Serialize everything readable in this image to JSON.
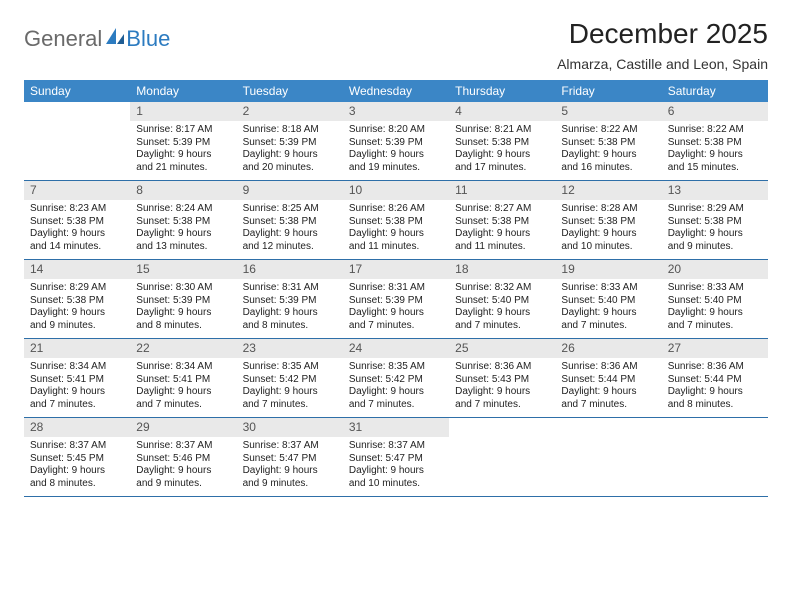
{
  "logo": {
    "textGray": "General",
    "textBlue": "Blue"
  },
  "title": "December 2025",
  "location": "Almarza, Castille and Leon, Spain",
  "colors": {
    "headerBar": "#3b86c6",
    "rowDivider": "#2e6fa8",
    "dayNumBg": "#e9e9e9",
    "logoGray": "#6a6a6a",
    "logoBlue": "#2c7bc0"
  },
  "dow": [
    "Sunday",
    "Monday",
    "Tuesday",
    "Wednesday",
    "Thursday",
    "Friday",
    "Saturday"
  ],
  "weeks": [
    [
      {
        "n": "",
        "sunrise": "",
        "sunset": "",
        "daylight": ""
      },
      {
        "n": "1",
        "sunrise": "Sunrise: 8:17 AM",
        "sunset": "Sunset: 5:39 PM",
        "daylight": "Daylight: 9 hours and 21 minutes."
      },
      {
        "n": "2",
        "sunrise": "Sunrise: 8:18 AM",
        "sunset": "Sunset: 5:39 PM",
        "daylight": "Daylight: 9 hours and 20 minutes."
      },
      {
        "n": "3",
        "sunrise": "Sunrise: 8:20 AM",
        "sunset": "Sunset: 5:39 PM",
        "daylight": "Daylight: 9 hours and 19 minutes."
      },
      {
        "n": "4",
        "sunrise": "Sunrise: 8:21 AM",
        "sunset": "Sunset: 5:38 PM",
        "daylight": "Daylight: 9 hours and 17 minutes."
      },
      {
        "n": "5",
        "sunrise": "Sunrise: 8:22 AM",
        "sunset": "Sunset: 5:38 PM",
        "daylight": "Daylight: 9 hours and 16 minutes."
      },
      {
        "n": "6",
        "sunrise": "Sunrise: 8:22 AM",
        "sunset": "Sunset: 5:38 PM",
        "daylight": "Daylight: 9 hours and 15 minutes."
      }
    ],
    [
      {
        "n": "7",
        "sunrise": "Sunrise: 8:23 AM",
        "sunset": "Sunset: 5:38 PM",
        "daylight": "Daylight: 9 hours and 14 minutes."
      },
      {
        "n": "8",
        "sunrise": "Sunrise: 8:24 AM",
        "sunset": "Sunset: 5:38 PM",
        "daylight": "Daylight: 9 hours and 13 minutes."
      },
      {
        "n": "9",
        "sunrise": "Sunrise: 8:25 AM",
        "sunset": "Sunset: 5:38 PM",
        "daylight": "Daylight: 9 hours and 12 minutes."
      },
      {
        "n": "10",
        "sunrise": "Sunrise: 8:26 AM",
        "sunset": "Sunset: 5:38 PM",
        "daylight": "Daylight: 9 hours and 11 minutes."
      },
      {
        "n": "11",
        "sunrise": "Sunrise: 8:27 AM",
        "sunset": "Sunset: 5:38 PM",
        "daylight": "Daylight: 9 hours and 11 minutes."
      },
      {
        "n": "12",
        "sunrise": "Sunrise: 8:28 AM",
        "sunset": "Sunset: 5:38 PM",
        "daylight": "Daylight: 9 hours and 10 minutes."
      },
      {
        "n": "13",
        "sunrise": "Sunrise: 8:29 AM",
        "sunset": "Sunset: 5:38 PM",
        "daylight": "Daylight: 9 hours and 9 minutes."
      }
    ],
    [
      {
        "n": "14",
        "sunrise": "Sunrise: 8:29 AM",
        "sunset": "Sunset: 5:38 PM",
        "daylight": "Daylight: 9 hours and 9 minutes."
      },
      {
        "n": "15",
        "sunrise": "Sunrise: 8:30 AM",
        "sunset": "Sunset: 5:39 PM",
        "daylight": "Daylight: 9 hours and 8 minutes."
      },
      {
        "n": "16",
        "sunrise": "Sunrise: 8:31 AM",
        "sunset": "Sunset: 5:39 PM",
        "daylight": "Daylight: 9 hours and 8 minutes."
      },
      {
        "n": "17",
        "sunrise": "Sunrise: 8:31 AM",
        "sunset": "Sunset: 5:39 PM",
        "daylight": "Daylight: 9 hours and 7 minutes."
      },
      {
        "n": "18",
        "sunrise": "Sunrise: 8:32 AM",
        "sunset": "Sunset: 5:40 PM",
        "daylight": "Daylight: 9 hours and 7 minutes."
      },
      {
        "n": "19",
        "sunrise": "Sunrise: 8:33 AM",
        "sunset": "Sunset: 5:40 PM",
        "daylight": "Daylight: 9 hours and 7 minutes."
      },
      {
        "n": "20",
        "sunrise": "Sunrise: 8:33 AM",
        "sunset": "Sunset: 5:40 PM",
        "daylight": "Daylight: 9 hours and 7 minutes."
      }
    ],
    [
      {
        "n": "21",
        "sunrise": "Sunrise: 8:34 AM",
        "sunset": "Sunset: 5:41 PM",
        "daylight": "Daylight: 9 hours and 7 minutes."
      },
      {
        "n": "22",
        "sunrise": "Sunrise: 8:34 AM",
        "sunset": "Sunset: 5:41 PM",
        "daylight": "Daylight: 9 hours and 7 minutes."
      },
      {
        "n": "23",
        "sunrise": "Sunrise: 8:35 AM",
        "sunset": "Sunset: 5:42 PM",
        "daylight": "Daylight: 9 hours and 7 minutes."
      },
      {
        "n": "24",
        "sunrise": "Sunrise: 8:35 AM",
        "sunset": "Sunset: 5:42 PM",
        "daylight": "Daylight: 9 hours and 7 minutes."
      },
      {
        "n": "25",
        "sunrise": "Sunrise: 8:36 AM",
        "sunset": "Sunset: 5:43 PM",
        "daylight": "Daylight: 9 hours and 7 minutes."
      },
      {
        "n": "26",
        "sunrise": "Sunrise: 8:36 AM",
        "sunset": "Sunset: 5:44 PM",
        "daylight": "Daylight: 9 hours and 7 minutes."
      },
      {
        "n": "27",
        "sunrise": "Sunrise: 8:36 AM",
        "sunset": "Sunset: 5:44 PM",
        "daylight": "Daylight: 9 hours and 8 minutes."
      }
    ],
    [
      {
        "n": "28",
        "sunrise": "Sunrise: 8:37 AM",
        "sunset": "Sunset: 5:45 PM",
        "daylight": "Daylight: 9 hours and 8 minutes."
      },
      {
        "n": "29",
        "sunrise": "Sunrise: 8:37 AM",
        "sunset": "Sunset: 5:46 PM",
        "daylight": "Daylight: 9 hours and 9 minutes."
      },
      {
        "n": "30",
        "sunrise": "Sunrise: 8:37 AM",
        "sunset": "Sunset: 5:47 PM",
        "daylight": "Daylight: 9 hours and 9 minutes."
      },
      {
        "n": "31",
        "sunrise": "Sunrise: 8:37 AM",
        "sunset": "Sunset: 5:47 PM",
        "daylight": "Daylight: 9 hours and 10 minutes."
      },
      {
        "n": "",
        "sunrise": "",
        "sunset": "",
        "daylight": ""
      },
      {
        "n": "",
        "sunrise": "",
        "sunset": "",
        "daylight": ""
      },
      {
        "n": "",
        "sunrise": "",
        "sunset": "",
        "daylight": ""
      }
    ]
  ]
}
